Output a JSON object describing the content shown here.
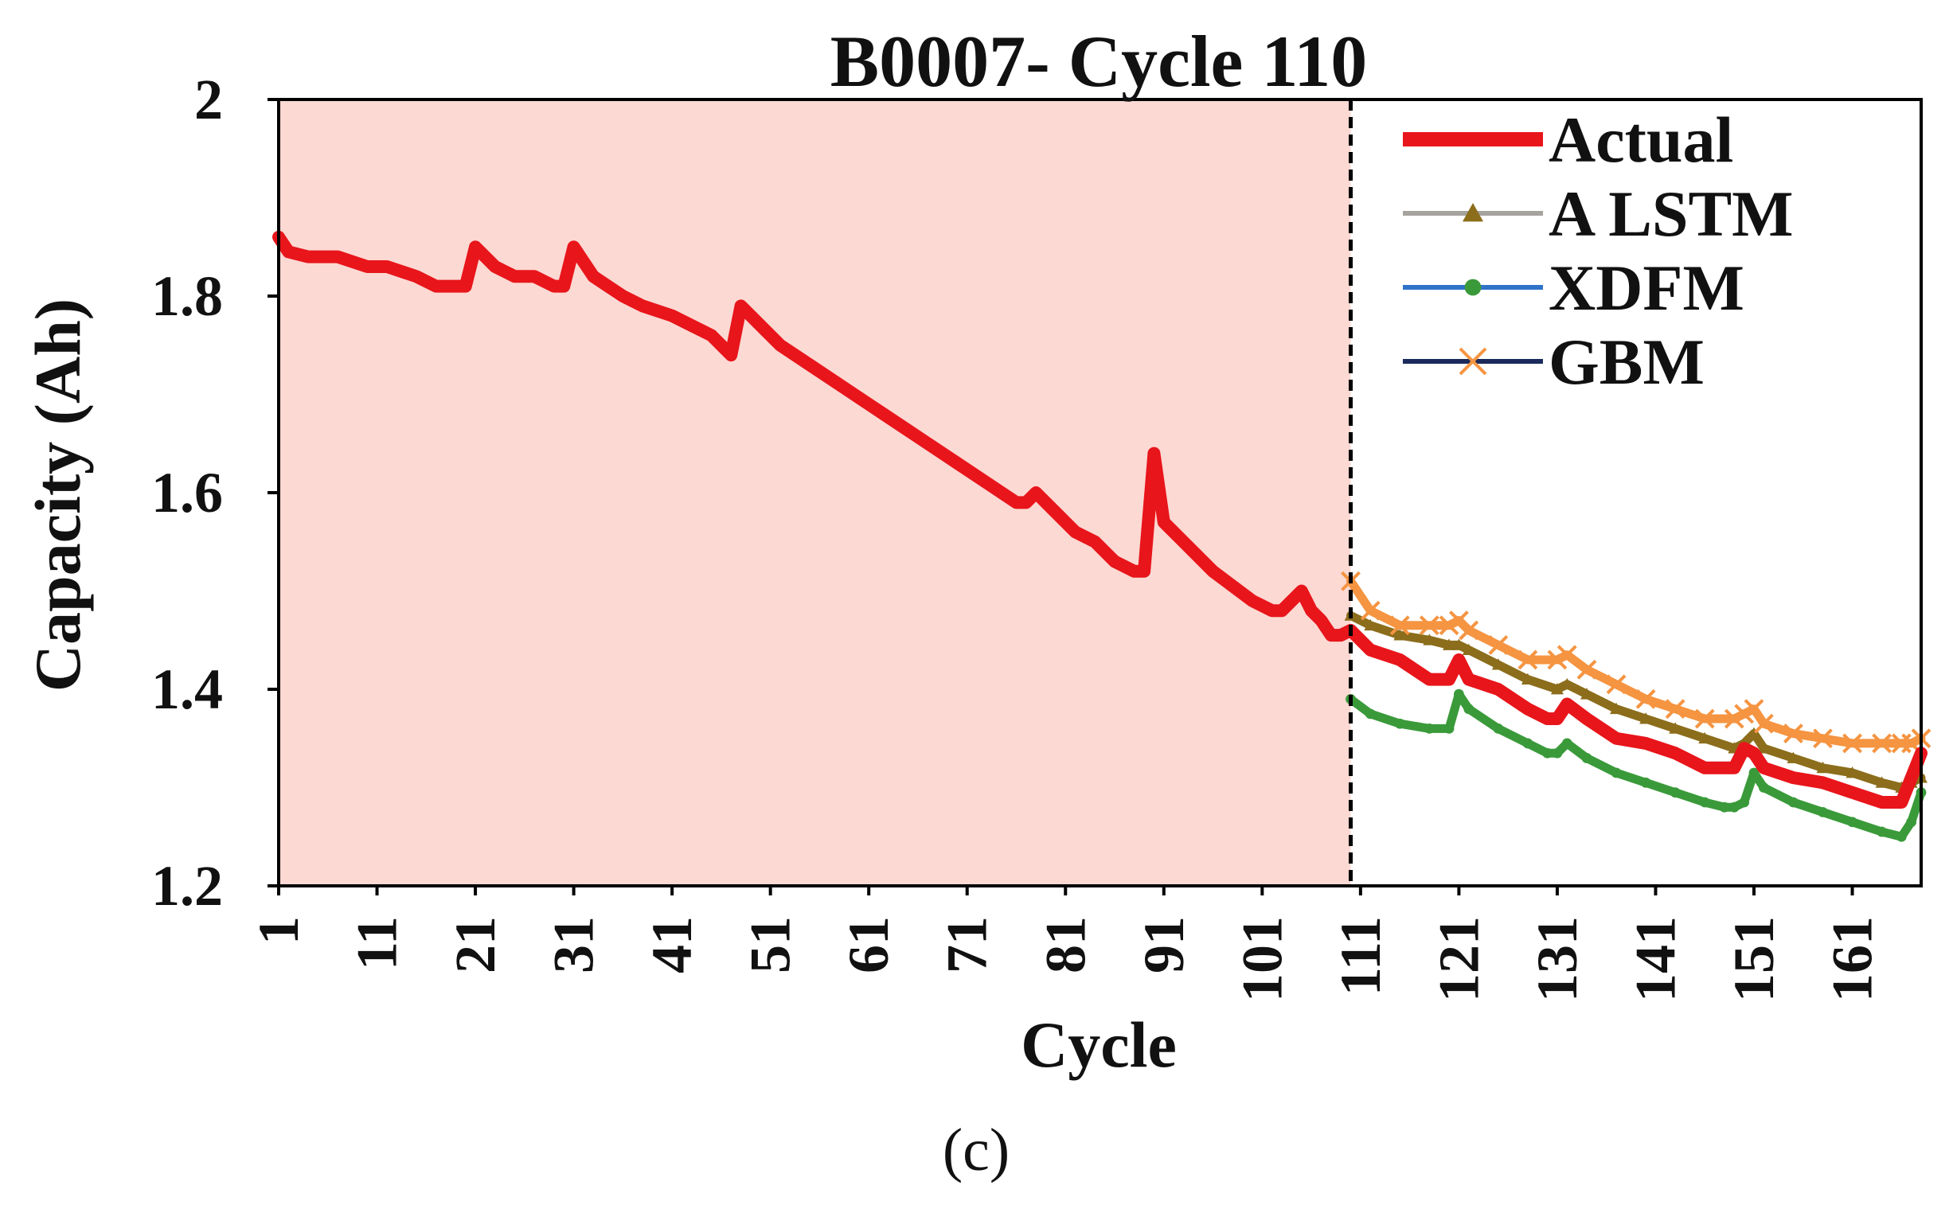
{
  "chart_data": {
    "type": "line",
    "title": "B0007- Cycle 110",
    "xlabel": "Cycle",
    "ylabel": "Capacity (Ah)",
    "caption": "(c)",
    "xlim": [
      1,
      168
    ],
    "ylim": [
      1.2,
      2.0
    ],
    "yticks": [
      1.2,
      1.4,
      1.6,
      1.8,
      2.0
    ],
    "ytick_labels": [
      "1.2",
      "1.4",
      "1.6",
      "1.8",
      "2"
    ],
    "xticks": [
      1,
      11,
      21,
      31,
      41,
      51,
      61,
      71,
      81,
      91,
      101,
      111,
      121,
      131,
      141,
      151,
      161
    ],
    "xtick_labels": [
      "1",
      "11",
      "21",
      "31",
      "41",
      "51",
      "61",
      "71",
      "81",
      "91",
      "101",
      "111",
      "121",
      "131",
      "141",
      "151",
      "161"
    ],
    "training_region": {
      "x_start": 1,
      "x_end": 110,
      "color": "#fcd9d3"
    },
    "split_line_x": 110,
    "legend_position": "top-right",
    "series": [
      {
        "name": "Actual",
        "color": "#e8151b",
        "marker": "none",
        "x": [
          1,
          2,
          4,
          7,
          10,
          12,
          15,
          17,
          20,
          21,
          23,
          25,
          27,
          29,
          30,
          31,
          33,
          36,
          38,
          41,
          43,
          45,
          46,
          47,
          48,
          50,
          52,
          55,
          58,
          61,
          64,
          67,
          70,
          73,
          76,
          77,
          78,
          80,
          82,
          84,
          86,
          88,
          89,
          90,
          91,
          93,
          96,
          100,
          102,
          103,
          105,
          106,
          107,
          108,
          109,
          110,
          112,
          115,
          118,
          120,
          121,
          122,
          125,
          128,
          130,
          131,
          132,
          134,
          137,
          140,
          143,
          146,
          148,
          149,
          150,
          151,
          152,
          155,
          158,
          161,
          164,
          166,
          167,
          168
        ],
        "values": [
          1.86,
          1.845,
          1.84,
          1.84,
          1.83,
          1.83,
          1.82,
          1.81,
          1.81,
          1.85,
          1.83,
          1.82,
          1.82,
          1.81,
          1.81,
          1.85,
          1.82,
          1.8,
          1.79,
          1.78,
          1.77,
          1.76,
          1.75,
          1.74,
          1.79,
          1.77,
          1.75,
          1.73,
          1.71,
          1.69,
          1.67,
          1.65,
          1.63,
          1.61,
          1.59,
          1.59,
          1.6,
          1.58,
          1.56,
          1.55,
          1.53,
          1.52,
          1.52,
          1.64,
          1.57,
          1.55,
          1.52,
          1.49,
          1.48,
          1.48,
          1.5,
          1.48,
          1.47,
          1.455,
          1.455,
          1.46,
          1.44,
          1.43,
          1.41,
          1.41,
          1.43,
          1.41,
          1.4,
          1.38,
          1.37,
          1.37,
          1.385,
          1.37,
          1.35,
          1.345,
          1.335,
          1.32,
          1.32,
          1.32,
          1.34,
          1.335,
          1.32,
          1.31,
          1.305,
          1.295,
          1.285,
          1.285,
          1.31,
          1.335
        ]
      },
      {
        "name": "A LSTM",
        "color": "#8b6d1b",
        "marker": "triangle",
        "x": [
          110,
          112,
          115,
          118,
          120,
          121,
          122,
          125,
          128,
          131,
          132,
          134,
          137,
          140,
          143,
          146,
          149,
          150,
          151,
          152,
          155,
          158,
          161,
          164,
          166,
          167,
          168
        ],
        "values": [
          1.475,
          1.465,
          1.455,
          1.45,
          1.445,
          1.445,
          1.44,
          1.425,
          1.41,
          1.4,
          1.405,
          1.395,
          1.38,
          1.37,
          1.36,
          1.35,
          1.34,
          1.345,
          1.355,
          1.34,
          1.33,
          1.32,
          1.315,
          1.305,
          1.3,
          1.305,
          1.31
        ]
      },
      {
        "name": "XDFM",
        "color": "#3a9a3a",
        "marker": "circle",
        "x": [
          110,
          112,
          115,
          118,
          120,
          121,
          122,
          125,
          128,
          130,
          131,
          132,
          134,
          137,
          140,
          143,
          146,
          148,
          149,
          150,
          151,
          152,
          155,
          158,
          161,
          164,
          166,
          167,
          168
        ],
        "values": [
          1.39,
          1.375,
          1.365,
          1.36,
          1.36,
          1.395,
          1.38,
          1.36,
          1.345,
          1.335,
          1.335,
          1.345,
          1.33,
          1.315,
          1.305,
          1.295,
          1.285,
          1.28,
          1.28,
          1.285,
          1.315,
          1.3,
          1.285,
          1.275,
          1.265,
          1.255,
          1.25,
          1.265,
          1.295
        ]
      },
      {
        "name": "GBM",
        "color": "#f59441",
        "marker": "cross",
        "x": [
          110,
          112,
          115,
          118,
          120,
          121,
          122,
          125,
          128,
          131,
          132,
          134,
          137,
          140,
          143,
          146,
          149,
          150,
          151,
          152,
          155,
          158,
          161,
          164,
          166,
          167,
          168
        ],
        "values": [
          1.51,
          1.48,
          1.465,
          1.465,
          1.465,
          1.47,
          1.46,
          1.445,
          1.43,
          1.43,
          1.435,
          1.42,
          1.405,
          1.39,
          1.38,
          1.37,
          1.37,
          1.375,
          1.38,
          1.365,
          1.355,
          1.35,
          1.345,
          1.345,
          1.345,
          1.345,
          1.35
        ]
      }
    ]
  },
  "legend": {
    "items": [
      {
        "label": "Actual",
        "line_color": "#e8151b",
        "marker": "none",
        "marker_color": "#e8151b"
      },
      {
        "label": "A LSTM",
        "line_color": "#a6a39e",
        "marker": "triangle",
        "marker_color": "#8b6d1b"
      },
      {
        "label": "XDFM",
        "line_color": "#2f73c9",
        "marker": "circle",
        "marker_color": "#3a9a3a"
      },
      {
        "label": "GBM",
        "line_color": "#1a2a5a",
        "marker": "cross",
        "marker_color": "#f59441"
      }
    ]
  }
}
